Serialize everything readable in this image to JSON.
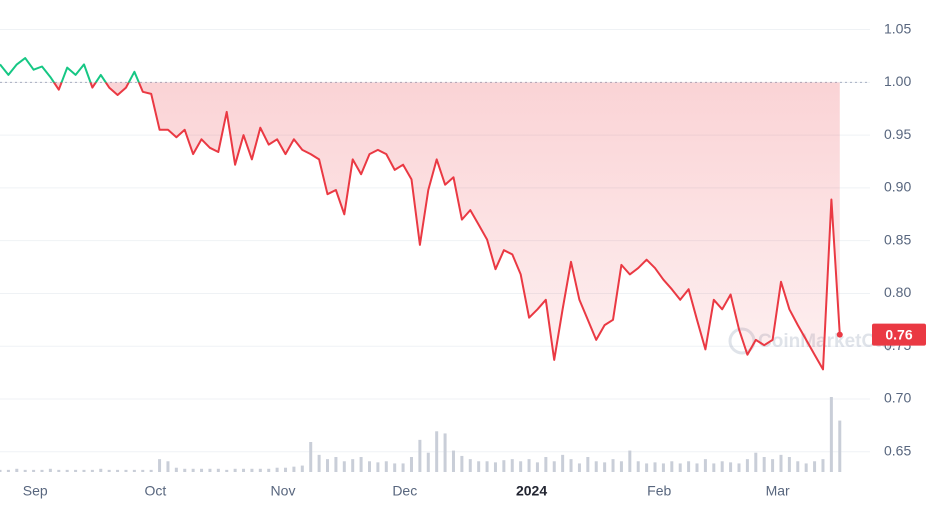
{
  "chart_data": {
    "type": "line",
    "values": [
      1.017,
      1.007,
      1.017,
      1.023,
      1.012,
      1.015,
      1.005,
      0.993,
      1.014,
      1.007,
      1.017,
      0.995,
      1.007,
      0.995,
      0.988,
      0.995,
      1.01,
      0.991,
      0.989,
      0.955,
      0.955,
      0.948,
      0.955,
      0.932,
      0.946,
      0.938,
      0.934,
      0.972,
      0.922,
      0.95,
      0.927,
      0.957,
      0.941,
      0.946,
      0.932,
      0.946,
      0.936,
      0.932,
      0.927,
      0.894,
      0.898,
      0.875,
      0.927,
      0.913,
      0.932,
      0.936,
      0.932,
      0.917,
      0.922,
      0.908,
      0.846,
      0.898,
      0.927,
      0.903,
      0.91,
      0.87,
      0.879,
      0.865,
      0.851,
      0.823,
      0.841,
      0.837,
      0.818,
      0.777,
      0.785,
      0.794,
      0.737,
      0.785,
      0.83,
      0.794,
      0.775,
      0.756,
      0.77,
      0.775,
      0.827,
      0.818,
      0.824,
      0.832,
      0.824,
      0.813,
      0.804,
      0.794,
      0.804,
      0.775,
      0.747,
      0.794,
      0.785,
      0.799,
      0.766,
      0.742,
      0.756,
      0.751,
      0.756,
      0.811,
      0.785,
      0.77,
      0.756,
      0.742,
      0.728,
      0.889,
      0.761
    ],
    "volume": [
      2,
      2,
      3,
      2,
      2,
      2,
      3,
      2,
      2,
      2,
      2,
      2,
      3,
      2,
      2,
      2,
      2,
      2,
      2,
      12,
      10,
      4,
      3,
      3,
      3,
      3,
      3,
      2,
      3,
      3,
      3,
      3,
      3,
      4,
      4,
      5,
      6,
      28,
      16,
      12,
      14,
      10,
      12,
      14,
      10,
      9,
      10,
      8,
      8,
      14,
      30,
      18,
      38,
      36,
      20,
      15,
      12,
      10,
      10,
      9,
      11,
      12,
      10,
      12,
      9,
      14,
      10,
      16,
      12,
      8,
      14,
      10,
      9,
      12,
      10,
      20,
      10,
      8,
      9,
      8,
      10,
      8,
      10,
      8,
      12,
      8,
      10,
      9,
      8,
      12,
      18,
      14,
      12,
      16,
      14,
      10,
      8,
      10,
      12,
      70,
      48
    ],
    "xlim": [
      0,
      103.6
    ],
    "xticks": [
      {
        "value": 4.2,
        "label": "Sep"
      },
      {
        "value": 18.5,
        "label": "Oct"
      },
      {
        "value": 33.7,
        "label": "Nov"
      },
      {
        "value": 48.2,
        "label": "Dec"
      },
      {
        "value": 63.3,
        "label": "2024",
        "bold": true
      },
      {
        "value": 78.5,
        "label": "Feb"
      },
      {
        "value": 92.6,
        "label": "Mar"
      }
    ],
    "ylim": [
      0.628,
      1.078
    ],
    "yticks": [
      0.65,
      {
        "value": 0.7,
        "label": "0.70"
      },
      0.75,
      {
        "value": 0.8,
        "label": "0.80"
      },
      0.85,
      {
        "value": 0.9,
        "label": "0.90"
      },
      0.95,
      {
        "value": 1,
        "label": "1.00"
      },
      1.05
    ],
    "baseline": 1,
    "up_color": "#16c784",
    "down_color": "#ea3943",
    "volume_color": "#c9ced8",
    "current_label": "0.76",
    "watermark": "CoinMarketCap",
    "grid": true
  }
}
